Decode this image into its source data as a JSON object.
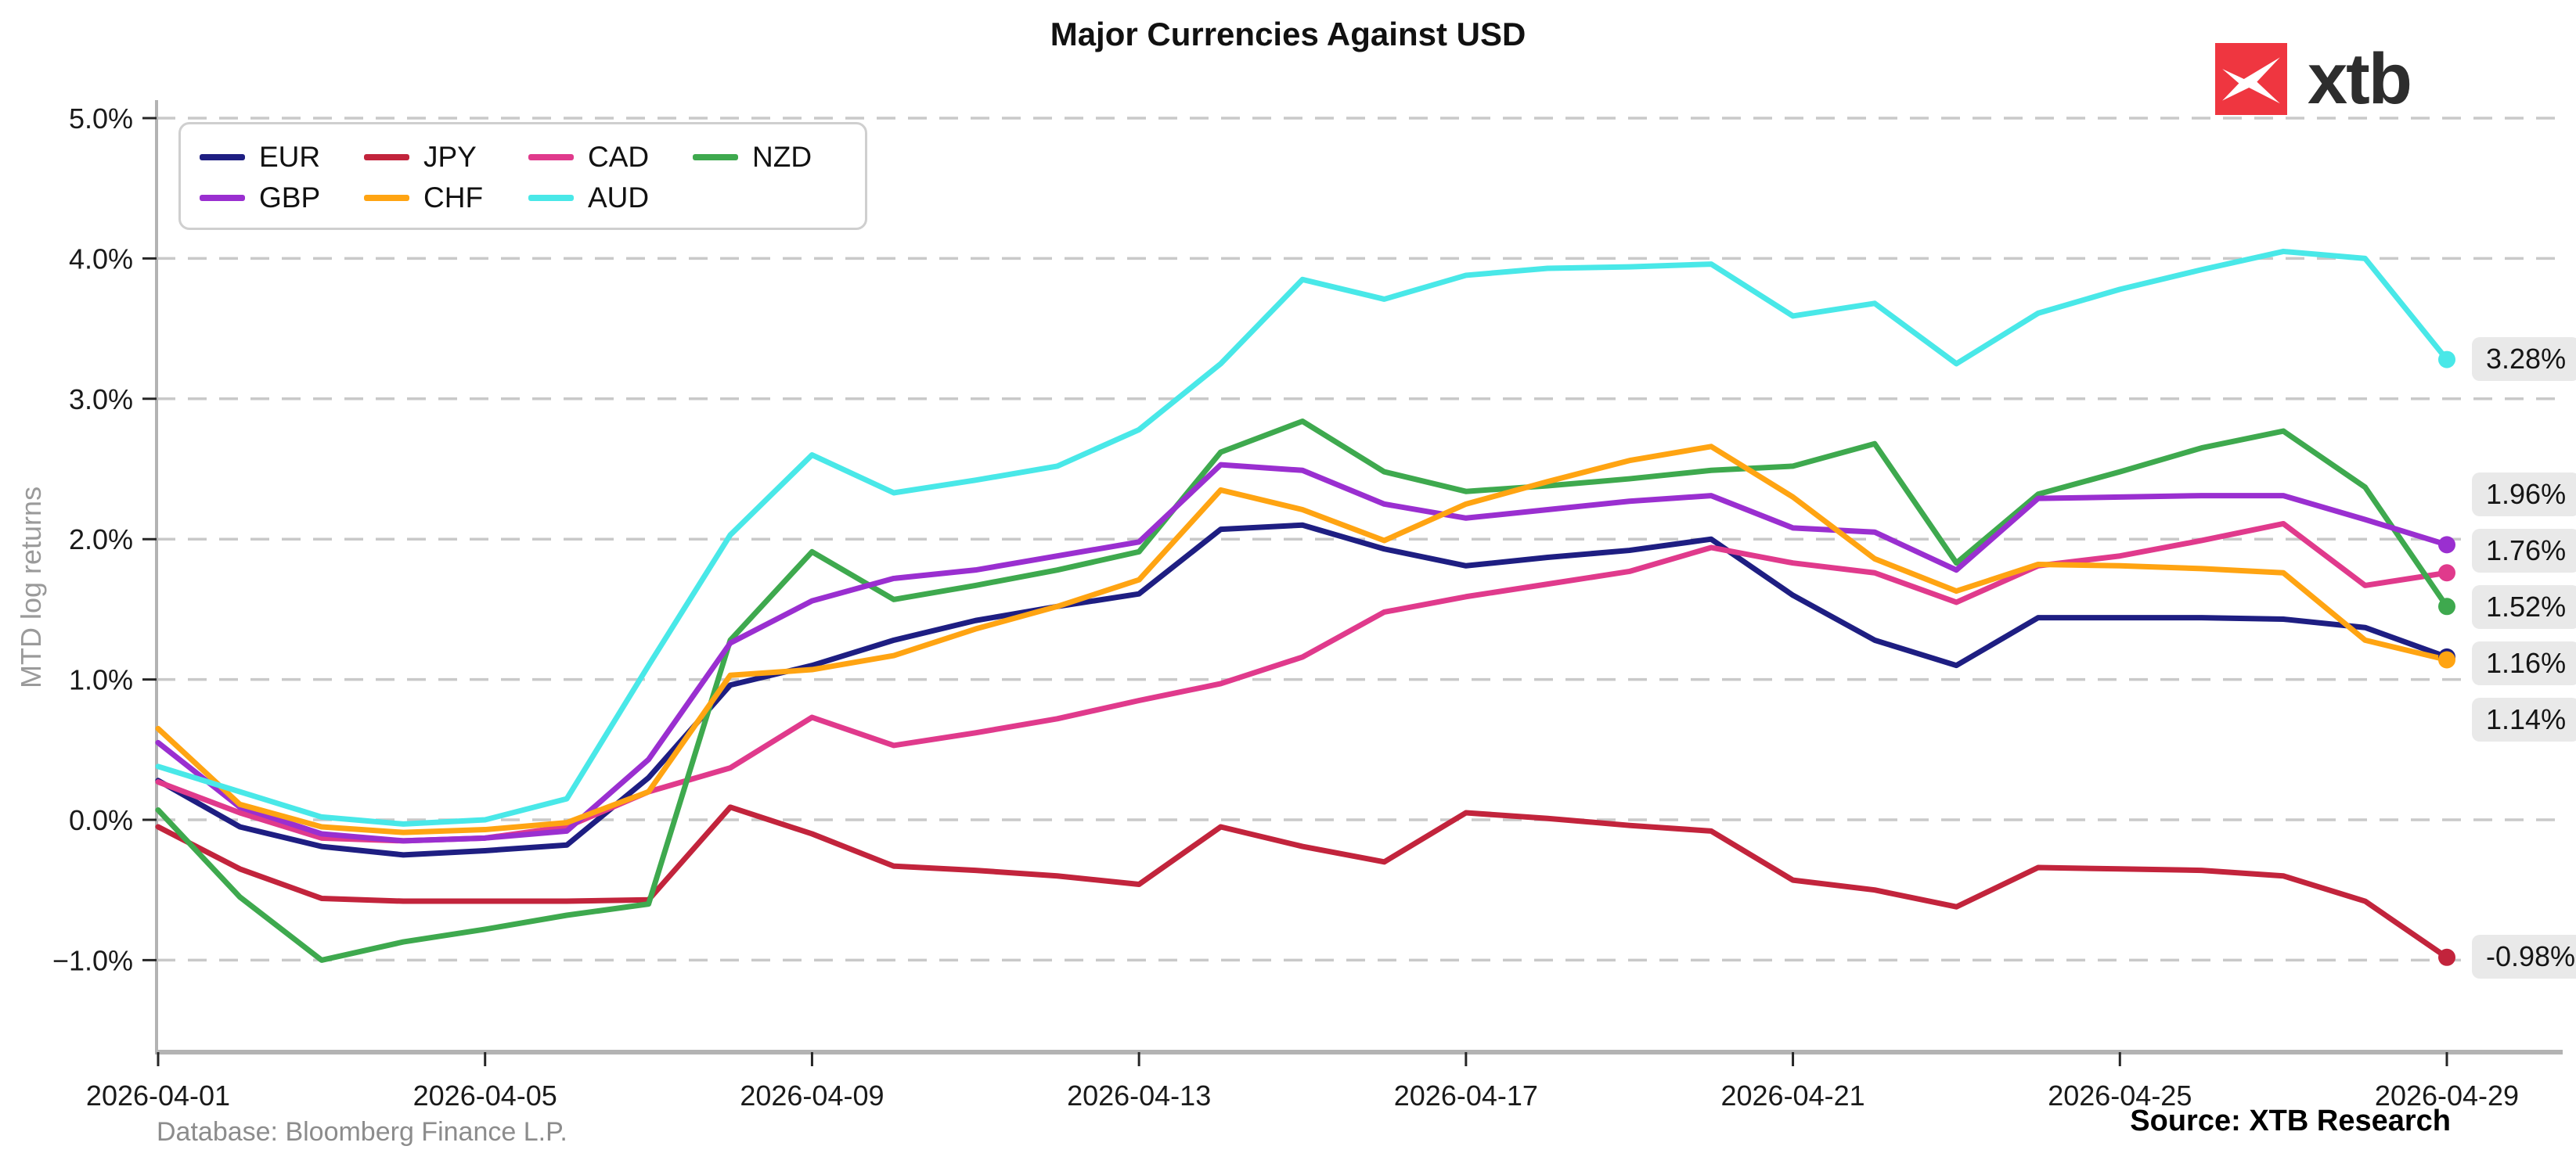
{
  "header": {
    "title": "Major Currencies Against USD",
    "logo_text": "xtb",
    "logo_color": "#ef3640"
  },
  "chart_data": {
    "type": "line",
    "title": "Major Currencies Against USD",
    "xlabel": "",
    "ylabel": "MTD log returns",
    "grid": "horizontal dashed",
    "legend_position": "upper left",
    "ylim": [
      -1.66,
      5.12
    ],
    "y_ticks": [
      {
        "value": 5.0,
        "label": "5.0%"
      },
      {
        "value": 4.0,
        "label": "4.0%"
      },
      {
        "value": 3.0,
        "label": "3.0%"
      },
      {
        "value": 2.0,
        "label": "2.0%"
      },
      {
        "value": 1.0,
        "label": "1.0%"
      },
      {
        "value": 0.0,
        "label": "0.0%"
      },
      {
        "value": -1.0,
        "label": "−1.0%"
      }
    ],
    "x": [
      "2026-04-01",
      "2026-04-02",
      "2026-04-03",
      "2026-04-04",
      "2026-04-05",
      "2026-04-06",
      "2026-04-07",
      "2026-04-08",
      "2026-04-09",
      "2026-04-10",
      "2026-04-11",
      "2026-04-12",
      "2026-04-13",
      "2026-04-14",
      "2026-04-15",
      "2026-04-16",
      "2026-04-17",
      "2026-04-18",
      "2026-04-19",
      "2026-04-20",
      "2026-04-21",
      "2026-04-22",
      "2026-04-23",
      "2026-04-24",
      "2026-04-25",
      "2026-04-26",
      "2026-04-27",
      "2026-04-28",
      "2026-04-29"
    ],
    "x_tick_indices": [
      0,
      4,
      8,
      12,
      16,
      20,
      24,
      28
    ],
    "series": [
      {
        "name": "EUR",
        "color": "#1e1e82",
        "end_label": "1.16%",
        "values": [
          0.28,
          -0.05,
          -0.19,
          -0.25,
          -0.22,
          -0.18,
          0.3,
          0.96,
          1.1,
          1.28,
          1.42,
          1.52,
          1.61,
          2.07,
          2.1,
          1.93,
          1.81,
          1.87,
          1.92,
          2.0,
          1.6,
          1.28,
          1.1,
          1.44,
          1.44,
          1.44,
          1.43,
          1.37,
          1.16
        ]
      },
      {
        "name": "JPY",
        "color": "#c2243c",
        "end_label": "-0.98%",
        "values": [
          -0.05,
          -0.35,
          -0.56,
          -0.58,
          -0.58,
          -0.58,
          -0.57,
          0.09,
          -0.1,
          -0.33,
          -0.36,
          -0.4,
          -0.46,
          -0.05,
          -0.19,
          -0.3,
          0.05,
          0.01,
          -0.04,
          -0.08,
          -0.43,
          -0.5,
          -0.62,
          -0.34,
          -0.35,
          -0.36,
          -0.4,
          -0.58,
          -0.98
        ]
      },
      {
        "name": "CAD",
        "color": "#e03a8c",
        "end_label": "1.76%",
        "values": [
          0.27,
          0.05,
          -0.13,
          -0.15,
          -0.13,
          -0.05,
          0.2,
          0.37,
          0.73,
          0.53,
          0.62,
          0.72,
          0.85,
          0.97,
          1.16,
          1.48,
          1.59,
          1.68,
          1.77,
          1.94,
          1.83,
          1.76,
          1.55,
          1.81,
          1.88,
          1.99,
          2.11,
          1.67,
          1.76
        ]
      },
      {
        "name": "NZD",
        "color": "#3ea94e",
        "end_label": "1.52%",
        "values": [
          0.07,
          -0.55,
          -1.0,
          -0.87,
          -0.78,
          -0.68,
          -0.6,
          1.28,
          1.91,
          1.57,
          1.67,
          1.78,
          1.91,
          2.62,
          2.84,
          2.48,
          2.34,
          2.38,
          2.43,
          2.49,
          2.52,
          2.68,
          1.83,
          2.32,
          2.48,
          2.65,
          2.77,
          2.37,
          1.52
        ]
      },
      {
        "name": "GBP",
        "color": "#9a2fd0",
        "end_label": "1.96%",
        "values": [
          0.55,
          0.09,
          -0.1,
          -0.15,
          -0.13,
          -0.08,
          0.43,
          1.26,
          1.56,
          1.72,
          1.78,
          1.88,
          1.98,
          2.53,
          2.49,
          2.25,
          2.15,
          2.21,
          2.27,
          2.31,
          2.08,
          2.05,
          1.78,
          2.29,
          2.3,
          2.31,
          2.31,
          2.14,
          1.96
        ]
      },
      {
        "name": "CHF",
        "color": "#ffa412",
        "end_label": "1.14%",
        "values": [
          0.65,
          0.11,
          -0.05,
          -0.09,
          -0.07,
          -0.02,
          0.2,
          1.03,
          1.07,
          1.17,
          1.36,
          1.52,
          1.71,
          2.35,
          2.21,
          1.99,
          2.25,
          2.41,
          2.56,
          2.66,
          2.3,
          1.86,
          1.63,
          1.82,
          1.81,
          1.79,
          1.76,
          1.28,
          1.14
        ]
      },
      {
        "name": "AUD",
        "color": "#49e8e8",
        "end_label": "3.28%",
        "values": [
          0.38,
          0.2,
          0.02,
          -0.03,
          0.0,
          0.15,
          1.1,
          2.03,
          2.6,
          2.33,
          2.42,
          2.52,
          2.78,
          3.25,
          3.85,
          3.71,
          3.88,
          3.93,
          3.94,
          3.96,
          3.59,
          3.68,
          3.25,
          3.61,
          3.78,
          3.92,
          4.05,
          4.0,
          3.28
        ]
      }
    ],
    "legend_order": [
      "EUR",
      "JPY",
      "CAD",
      "NZD",
      "GBP",
      "CHF",
      "AUD"
    ]
  },
  "footer": {
    "database": "Database: Bloomberg Finance L.P.",
    "source": "Source: XTB Research"
  }
}
